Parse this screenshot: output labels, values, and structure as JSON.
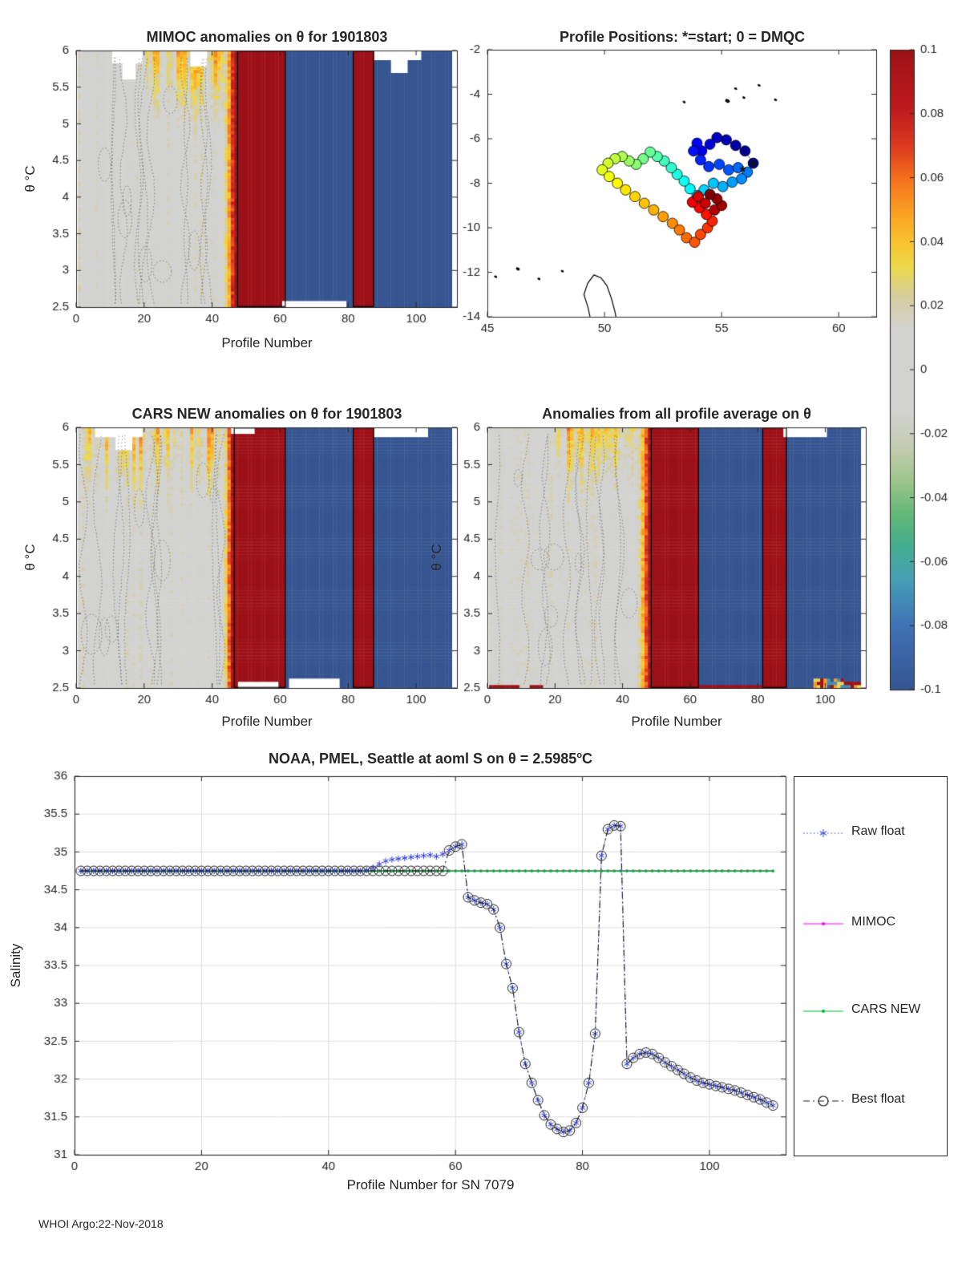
{
  "page": {
    "footer": "WHOI Argo:22-Nov-2018",
    "background": "#ffffff"
  },
  "colors": {
    "axis": "#262626",
    "grid": "#dcdcdc"
  },
  "colormap": {
    "stops": [
      [
        -0.1,
        "#365591"
      ],
      [
        -0.08,
        "#3f72b5"
      ],
      [
        -0.065,
        "#46a0b5"
      ],
      [
        -0.055,
        "#44ad8f"
      ],
      [
        -0.045,
        "#63b878"
      ],
      [
        -0.035,
        "#9cc489"
      ],
      [
        -0.025,
        "#c2cbae"
      ],
      [
        -0.013,
        "#d2d2d0"
      ],
      [
        0.013,
        "#d2d2d0"
      ],
      [
        0.023,
        "#d6cd9f"
      ],
      [
        0.032,
        "#ecd94d"
      ],
      [
        0.04,
        "#f9c32e"
      ],
      [
        0.05,
        "#fa9e22"
      ],
      [
        0.06,
        "#f4701d"
      ],
      [
        0.07,
        "#dc3a1e"
      ],
      [
        0.082,
        "#bd1a1d"
      ],
      [
        0.1,
        "#9d1118"
      ]
    ]
  },
  "colorbar": {
    "ticks": [
      0.1,
      0.08,
      0.06,
      0.04,
      0.02,
      0,
      -0.02,
      -0.04,
      -0.06,
      -0.08,
      -0.1
    ],
    "tick_labels": [
      "0.1",
      "0.08",
      "0.06",
      "0.04",
      "0.02",
      "0",
      "-0.02",
      "-0.04",
      "-0.06",
      "-0.08",
      "-0.1"
    ],
    "vmin": -0.1,
    "vmax": 0.1
  },
  "chart_data": [
    {
      "id": "mimoc-heatmap",
      "type": "heatmap",
      "title": "MIMOC anomalies on θ  for 1901803",
      "xlabel": "Profile Number",
      "ylabel": "θ °C",
      "xlim": [
        0,
        112
      ],
      "ylim": [
        2.5,
        6
      ],
      "xticks": [
        0,
        20,
        40,
        60,
        80,
        100
      ],
      "yticks": [
        2.5,
        3,
        3.5,
        4,
        4.5,
        5,
        5.5,
        6
      ],
      "seed": 7,
      "segments": [
        {
          "p0": 1,
          "p1": 43,
          "v": 0,
          "gray": true
        },
        {
          "p0": 44,
          "p1": 47,
          "ramp": [
            0.025,
            0.095
          ]
        },
        {
          "p0": 48,
          "p1": 61,
          "v": 0.13
        },
        {
          "p0": 62,
          "p1": 81,
          "v": -0.13
        },
        {
          "p0": 82,
          "p1": 87,
          "v": 0.13
        },
        {
          "p0": 88,
          "p1": 110,
          "v": -0.13
        }
      ],
      "warm": {
        "p0": 18,
        "p1": 46,
        "th0": 4.9,
        "amp": 0.05
      },
      "gaps": [
        {
          "p": [
            11,
            19
          ],
          "th": [
            5.84,
            6
          ]
        },
        {
          "p": [
            14,
            17
          ],
          "th": [
            5.62,
            6
          ]
        },
        {
          "p": [
            34,
            38
          ],
          "th": [
            5.8,
            6
          ]
        },
        {
          "p": [
            88,
            101
          ],
          "th": [
            5.86,
            6
          ]
        },
        {
          "p": [
            93,
            97
          ],
          "th": [
            5.7,
            6
          ]
        },
        {
          "p": [
            61,
            79
          ],
          "th": [
            2.5,
            2.58
          ]
        }
      ]
    },
    {
      "id": "profile-positions-map",
      "type": "scatter",
      "title": "Profile Positions: *=start; 0 = DMQC",
      "xlim": [
        45,
        61.6
      ],
      "ylim": [
        -14,
        -2
      ],
      "xticks": [
        45,
        50,
        55,
        60
      ],
      "yticks": [
        -2,
        -4,
        -6,
        -8,
        -10,
        -12,
        -14
      ],
      "points": [
        [
          56.35,
          -7.1
        ],
        [
          56.0,
          -6.55
        ],
        [
          55.6,
          -6.3
        ],
        [
          55.2,
          -6.05
        ],
        [
          54.8,
          -5.95
        ],
        [
          54.5,
          -6.25
        ],
        [
          54.15,
          -6.55
        ],
        [
          53.95,
          -6.2
        ],
        [
          53.8,
          -6.55
        ],
        [
          54.1,
          -6.95
        ],
        [
          54.45,
          -7.25
        ],
        [
          54.9,
          -7.15
        ],
        [
          55.3,
          -7.4
        ],
        [
          55.7,
          -7.3
        ],
        [
          56.1,
          -7.5
        ],
        [
          55.85,
          -7.8
        ],
        [
          55.45,
          -7.95
        ],
        [
          55.05,
          -8.15
        ],
        [
          54.65,
          -8.0
        ],
        [
          54.25,
          -8.3
        ],
        [
          53.95,
          -8.55
        ],
        [
          53.65,
          -8.25
        ],
        [
          53.4,
          -7.9
        ],
        [
          53.1,
          -7.6
        ],
        [
          52.85,
          -7.3
        ],
        [
          52.55,
          -7.0
        ],
        [
          52.25,
          -6.8
        ],
        [
          51.95,
          -6.6
        ],
        [
          51.65,
          -6.9
        ],
        [
          51.35,
          -7.15
        ],
        [
          51.05,
          -7.0
        ],
        [
          50.75,
          -6.8
        ],
        [
          50.45,
          -6.9
        ],
        [
          50.15,
          -7.1
        ],
        [
          49.9,
          -7.4
        ],
        [
          50.2,
          -7.7
        ],
        [
          50.55,
          -8.0
        ],
        [
          50.9,
          -8.3
        ],
        [
          51.3,
          -8.6
        ],
        [
          51.7,
          -8.9
        ],
        [
          52.1,
          -9.2
        ],
        [
          52.5,
          -9.5
        ],
        [
          52.9,
          -9.8
        ],
        [
          53.2,
          -10.1
        ],
        [
          53.5,
          -10.45
        ],
        [
          53.85,
          -10.65
        ],
        [
          54.1,
          -10.3
        ],
        [
          54.4,
          -10.0
        ],
        [
          54.6,
          -9.7
        ],
        [
          54.35,
          -9.4
        ],
        [
          54.05,
          -9.1
        ],
        [
          53.75,
          -8.85
        ],
        [
          54.0,
          -8.6
        ],
        [
          54.3,
          -8.9
        ],
        [
          54.7,
          -9.2
        ],
        [
          55.0,
          -9.0
        ],
        [
          54.8,
          -8.7
        ],
        [
          54.5,
          -8.5
        ]
      ],
      "stars": [
        [
          56.35,
          -7.1
        ],
        [
          55.9,
          -7.35
        ]
      ],
      "coastlines": [
        [
          [
            49.45,
            -14.35
          ],
          [
            49.3,
            -13.6
          ],
          [
            49.12,
            -13.0
          ],
          [
            49.28,
            -12.5
          ],
          [
            49.55,
            -12.12
          ],
          [
            49.85,
            -12.25
          ],
          [
            50.1,
            -12.6
          ],
          [
            50.3,
            -13.2
          ],
          [
            50.45,
            -13.8
          ],
          [
            50.55,
            -14.35
          ]
        ]
      ],
      "islands": [
        [
          55.25,
          -4.3,
          3
        ],
        [
          55.6,
          -3.75,
          2
        ],
        [
          55.95,
          -4.15,
          2
        ],
        [
          56.6,
          -3.6,
          2
        ],
        [
          57.3,
          -4.25,
          2
        ],
        [
          53.4,
          -4.35,
          2
        ],
        [
          46.3,
          -11.85,
          2.5
        ],
        [
          47.2,
          -12.3,
          2
        ],
        [
          48.2,
          -11.95,
          2
        ],
        [
          45.35,
          -12.2,
          2
        ]
      ]
    },
    {
      "id": "cars-heatmap",
      "type": "heatmap",
      "title": "CARS NEW anomalies on θ for 1901803",
      "xlabel": "Profile Number",
      "ylabel": "θ °C",
      "xlim": [
        0,
        112
      ],
      "ylim": [
        2.5,
        6
      ],
      "xticks": [
        0,
        20,
        40,
        60,
        80,
        100
      ],
      "yticks": [
        2.5,
        3,
        3.5,
        4,
        4.5,
        5,
        5.5,
        6
      ],
      "seed": 19,
      "segments": [
        {
          "p0": 1,
          "p1": 43,
          "v": 0,
          "gray": true
        },
        {
          "p0": 44,
          "p1": 46,
          "ramp": [
            0.03,
            0.09
          ]
        },
        {
          "p0": 47,
          "p1": 61,
          "v": 0.13
        },
        {
          "p0": 62,
          "p1": 81,
          "v": -0.13
        },
        {
          "p0": 82,
          "p1": 87,
          "v": 0.13
        },
        {
          "p0": 88,
          "p1": 110,
          "v": -0.13
        }
      ],
      "warm": {
        "p0": 3,
        "p1": 46,
        "th0": 4.8,
        "amp": 0.05
      },
      "gaps": [
        {
          "p": [
            6,
            19
          ],
          "th": [
            5.88,
            6
          ]
        },
        {
          "p": [
            12,
            16
          ],
          "th": [
            5.7,
            6
          ]
        },
        {
          "p": [
            46,
            52
          ],
          "th": [
            5.9,
            6
          ]
        },
        {
          "p": [
            88,
            103
          ],
          "th": [
            5.85,
            6
          ]
        },
        {
          "p": [
            48,
            59
          ],
          "th": [
            2.5,
            2.6
          ]
        },
        {
          "p": [
            63,
            77
          ],
          "th": [
            2.5,
            2.62
          ]
        }
      ]
    },
    {
      "id": "allprofile-heatmap",
      "type": "heatmap",
      "title": "Anomalies from all profile average on θ",
      "xlabel": "Profile Number",
      "ylabel": "θ °C",
      "xlim": [
        0,
        112
      ],
      "ylim": [
        2.5,
        6
      ],
      "xticks": [
        0,
        20,
        40,
        60,
        80,
        100
      ],
      "yticks": [
        2.5,
        3,
        3.5,
        4,
        4.5,
        5,
        5.5,
        6
      ],
      "seed": 31,
      "segments": [
        {
          "p0": 1,
          "p1": 44,
          "v": 0,
          "gray": true
        },
        {
          "p0": 45,
          "p1": 48,
          "ramp": [
            0.02,
            0.09
          ]
        },
        {
          "p0": 49,
          "p1": 62,
          "v": 0.13
        },
        {
          "p0": 63,
          "p1": 81,
          "v": -0.13
        },
        {
          "p0": 82,
          "p1": 88,
          "v": 0.13
        },
        {
          "p0": 89,
          "p1": 110,
          "v": -0.13
        }
      ],
      "warm": {
        "p0": 20,
        "p1": 48,
        "th0": 4.9,
        "amp": 0.045
      },
      "gaps": [
        {
          "p": [
            88,
            100
          ],
          "th": [
            5.88,
            6
          ]
        }
      ],
      "features": [
        {
          "p": [
            1,
            9
          ],
          "th": [
            2.5,
            2.56
          ],
          "v": 0.13
        },
        {
          "p": [
            13,
            16
          ],
          "th": [
            2.5,
            2.55
          ],
          "v": 0.13
        },
        {
          "p": [
            55,
            84
          ],
          "th": [
            2.5,
            2.56
          ],
          "v": 0.13
        },
        {
          "p": [
            97,
            110
          ],
          "th": [
            2.5,
            2.64
          ],
          "mix": true
        }
      ]
    },
    {
      "id": "salinity-line",
      "type": "line",
      "title_parts": {
        "main": "NOAA, PMEL, Seattle at aoml S on θ = 2.5985",
        "sup": "o",
        "suffix": "C"
      },
      "xlabel": "Profile Number for SN 7079",
      "ylabel": "Salinity",
      "xlim": [
        0,
        112
      ],
      "ylim": [
        31,
        36
      ],
      "xticks": [
        0,
        20,
        40,
        60,
        80,
        100
      ],
      "yticks": [
        31,
        31.5,
        32,
        32.5,
        33,
        33.5,
        34,
        34.5,
        35,
        35.5,
        36
      ],
      "grid": true,
      "x_start": 1,
      "series": [
        {
          "name": "Raw float",
          "color": "#2e3bd6",
          "style": "dotted",
          "marker": "asterisk",
          "values": [
            34.75,
            34.75,
            34.75,
            34.75,
            34.75,
            34.75,
            34.75,
            34.75,
            34.75,
            34.75,
            34.75,
            34.75,
            34.75,
            34.75,
            34.75,
            34.75,
            34.75,
            34.75,
            34.75,
            34.75,
            34.75,
            34.75,
            34.75,
            34.75,
            34.75,
            34.75,
            34.75,
            34.75,
            34.75,
            34.75,
            34.75,
            34.75,
            34.75,
            34.75,
            34.75,
            34.75,
            34.75,
            34.75,
            34.75,
            34.75,
            34.75,
            34.75,
            34.75,
            34.75,
            34.75,
            34.76,
            34.79,
            34.84,
            34.88,
            34.9,
            34.91,
            34.92,
            34.93,
            34.94,
            34.95,
            34.96,
            34.94,
            34.97,
            35.02,
            35.07,
            35.1,
            34.4,
            34.36,
            34.33,
            34.31,
            34.24,
            34.0,
            33.52,
            33.2,
            32.62,
            32.2,
            31.95,
            31.72,
            31.52,
            31.4,
            31.34,
            31.3,
            31.32,
            31.42,
            31.62,
            31.95,
            32.6,
            34.95,
            35.3,
            35.35,
            35.34,
            32.2,
            32.28,
            32.33,
            32.35,
            32.33,
            32.28,
            32.22,
            32.17,
            32.12,
            32.07,
            32.02,
            31.98,
            31.95,
            31.93,
            31.91,
            31.89,
            31.87,
            31.85,
            31.82,
            31.79,
            31.76,
            31.73,
            31.69,
            31.65
          ]
        },
        {
          "name": "MIMOC",
          "color": "#ff00ff",
          "style": "solid",
          "marker": "dot",
          "constant": 34.75
        },
        {
          "name": "CARS NEW",
          "color": "#00b830",
          "style": "solid",
          "marker": "dot",
          "constant": 34.747
        },
        {
          "name": "Best float",
          "color": "#1a1a1a",
          "style": "dashdot",
          "marker": "circle",
          "values": [
            34.75,
            34.75,
            34.75,
            34.75,
            34.75,
            34.75,
            34.75,
            34.75,
            34.75,
            34.75,
            34.75,
            34.75,
            34.75,
            34.75,
            34.75,
            34.75,
            34.75,
            34.75,
            34.75,
            34.75,
            34.75,
            34.75,
            34.75,
            34.75,
            34.75,
            34.75,
            34.75,
            34.75,
            34.75,
            34.75,
            34.75,
            34.75,
            34.75,
            34.75,
            34.75,
            34.75,
            34.75,
            34.75,
            34.75,
            34.75,
            34.75,
            34.75,
            34.75,
            34.75,
            34.75,
            34.75,
            34.75,
            34.75,
            34.75,
            34.75,
            34.75,
            34.75,
            34.75,
            34.75,
            34.75,
            34.75,
            34.75,
            34.75,
            35.02,
            35.07,
            35.1,
            34.4,
            34.36,
            34.33,
            34.31,
            34.24,
            34.0,
            33.52,
            33.2,
            32.62,
            32.2,
            31.95,
            31.72,
            31.52,
            31.4,
            31.34,
            31.3,
            31.32,
            31.42,
            31.62,
            31.95,
            32.6,
            34.95,
            35.3,
            35.35,
            35.34,
            32.2,
            32.28,
            32.33,
            32.35,
            32.33,
            32.28,
            32.22,
            32.17,
            32.12,
            32.07,
            32.02,
            31.98,
            31.95,
            31.93,
            31.91,
            31.89,
            31.87,
            31.85,
            31.82,
            31.79,
            31.76,
            31.73,
            31.69,
            31.65
          ]
        }
      ]
    }
  ]
}
